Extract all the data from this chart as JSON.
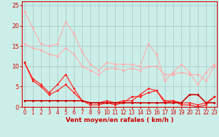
{
  "xlabel": "Vent moyen/en rafales ( km/h )",
  "background_color": "#cceee8",
  "grid_color": "#aacccc",
  "x_values": [
    0,
    1,
    2,
    3,
    4,
    5,
    6,
    7,
    8,
    9,
    10,
    11,
    12,
    13,
    14,
    15,
    16,
    17,
    18,
    19,
    20,
    21,
    22,
    23
  ],
  "series": [
    {
      "name": "line1_light_high",
      "color": "#ffaaaa",
      "linewidth": 0.8,
      "marker": "o",
      "markersize": 2.0,
      "y": [
        23.5,
        19.5,
        15.5,
        15.0,
        15.5,
        21.0,
        18.0,
        13.5,
        10.5,
        9.0,
        11.0,
        10.5,
        10.5,
        10.5,
        10.0,
        15.5,
        13.0,
        6.5,
        8.5,
        10.5,
        8.5,
        5.5,
        8.5,
        10.5
      ]
    },
    {
      "name": "line2_light_mid",
      "color": "#ffaaaa",
      "linewidth": 0.8,
      "marker": "o",
      "markersize": 2.0,
      "y": [
        15.5,
        14.5,
        14.0,
        13.0,
        12.5,
        14.5,
        13.0,
        10.0,
        9.0,
        8.0,
        9.5,
        9.5,
        9.0,
        9.5,
        9.0,
        10.0,
        10.0,
        8.0,
        8.0,
        8.5,
        8.0,
        8.0,
        6.5,
        10.0
      ]
    },
    {
      "name": "line3_red_high",
      "color": "#ff2222",
      "linewidth": 0.9,
      "marker": "o",
      "markersize": 2.0,
      "y": [
        11.0,
        7.0,
        5.5,
        3.5,
        5.5,
        8.0,
        4.5,
        1.5,
        1.0,
        1.0,
        1.5,
        1.0,
        1.5,
        1.5,
        3.0,
        4.5,
        4.0,
        1.5,
        1.5,
        1.0,
        1.0,
        0.5,
        1.0,
        2.5
      ]
    },
    {
      "name": "line4_red_mid",
      "color": "#ff2222",
      "linewidth": 0.9,
      "marker": "o",
      "markersize": 2.0,
      "y": [
        11.0,
        6.5,
        5.0,
        3.0,
        4.0,
        5.5,
        3.5,
        1.5,
        0.5,
        0.5,
        1.0,
        0.5,
        1.0,
        2.5,
        2.5,
        3.5,
        4.0,
        1.0,
        1.5,
        0.5,
        0.5,
        0.0,
        0.5,
        2.5
      ]
    },
    {
      "name": "line5_dark_flat",
      "color": "#cc0000",
      "linewidth": 1.2,
      "marker": "o",
      "markersize": 2.0,
      "y": [
        1.5,
        1.5,
        1.5,
        1.5,
        1.5,
        1.5,
        1.5,
        1.5,
        1.0,
        1.0,
        1.0,
        1.0,
        1.0,
        1.0,
        1.0,
        1.0,
        1.0,
        1.0,
        1.0,
        1.0,
        3.0,
        3.0,
        1.0,
        1.0
      ]
    }
  ],
  "ylim": [
    0,
    26
  ],
  "xlim": [
    -0.3,
    23.3
  ],
  "yticks": [
    0,
    5,
    10,
    15,
    20,
    25
  ],
  "xticks": [
    0,
    1,
    2,
    3,
    4,
    5,
    6,
    7,
    8,
    9,
    10,
    11,
    12,
    13,
    14,
    15,
    16,
    17,
    18,
    19,
    20,
    21,
    22,
    23
  ],
  "xlabel_fontsize": 6.5,
  "tick_fontsize": 5.5,
  "ytick_fontsize": 6.0
}
